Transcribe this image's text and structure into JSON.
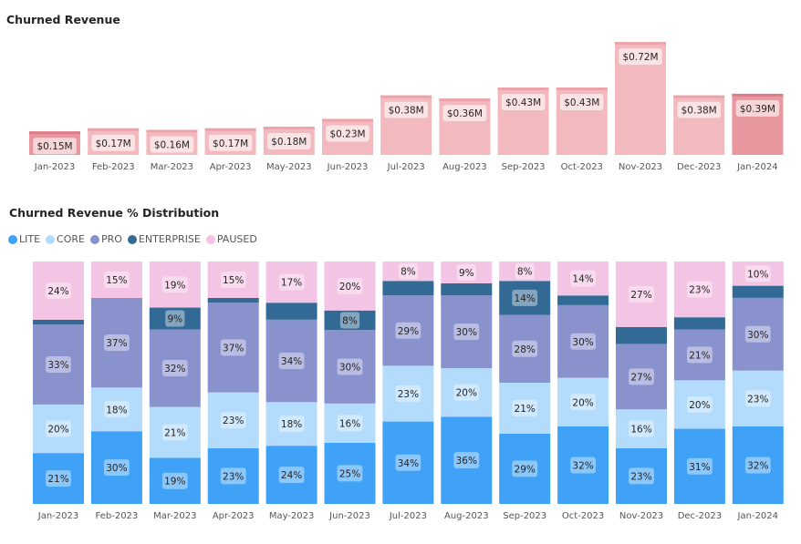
{
  "chart_data": [
    {
      "type": "bar",
      "title": "Churned Revenue",
      "categories": [
        "Jan-2023",
        "Feb-2023",
        "Mar-2023",
        "Apr-2023",
        "May-2023",
        "Jun-2023",
        "Jul-2023",
        "Aug-2023",
        "Sep-2023",
        "Oct-2023",
        "Nov-2023",
        "Dec-2023",
        "Jan-2024"
      ],
      "values": [
        0.15,
        0.17,
        0.16,
        0.17,
        0.18,
        0.23,
        0.38,
        0.36,
        0.43,
        0.43,
        0.72,
        0.38,
        0.39
      ],
      "data_labels": [
        "$0.15M",
        "$0.17M",
        "$0.16M",
        "$0.17M",
        "$0.18M",
        "$0.23M",
        "$0.38M",
        "$0.36M",
        "$0.43M",
        "$0.43M",
        "$0.72M",
        "$0.38M",
        "$0.39M"
      ],
      "unit": "$M",
      "colors": {
        "bar": "#f2b9be",
        "highlight": "#e8979e"
      },
      "highlighted": [
        "Jan-2023",
        "Jan-2024"
      ],
      "grid": false
    },
    {
      "type": "bar",
      "stacked": "100%",
      "title": "Churned Revenue % Distribution",
      "legend_position": "top-left",
      "categories": [
        "Jan-2023",
        "Feb-2023",
        "Mar-2023",
        "Apr-2023",
        "May-2023",
        "Jun-2023",
        "Jul-2023",
        "Aug-2023",
        "Sep-2023",
        "Oct-2023",
        "Nov-2023",
        "Dec-2023",
        "Jan-2024"
      ],
      "series": [
        {
          "name": "LITE",
          "color": "#3fa2f7",
          "values": [
            21,
            30,
            19,
            23,
            24,
            25,
            34,
            36,
            29,
            32,
            23,
            31,
            32
          ]
        },
        {
          "name": "CORE",
          "color": "#b3dbfb",
          "values": [
            20,
            18,
            21,
            23,
            18,
            16,
            23,
            20,
            21,
            20,
            16,
            20,
            23
          ]
        },
        {
          "name": "PRO",
          "color": "#8a92ce",
          "values": [
            33,
            37,
            32,
            37,
            34,
            30,
            29,
            30,
            28,
            30,
            27,
            21,
            30
          ]
        },
        {
          "name": "ENTERPRISE",
          "color": "#336a95",
          "values": [
            2,
            0,
            9,
            2,
            7,
            8,
            6,
            5,
            14,
            4,
            7,
            5,
            5
          ]
        },
        {
          "name": "PAUSED",
          "color": "#f3c4e3",
          "values": [
            24,
            15,
            19,
            15,
            17,
            20,
            8,
            9,
            8,
            14,
            27,
            23,
            10
          ]
        }
      ],
      "grid": false
    }
  ]
}
